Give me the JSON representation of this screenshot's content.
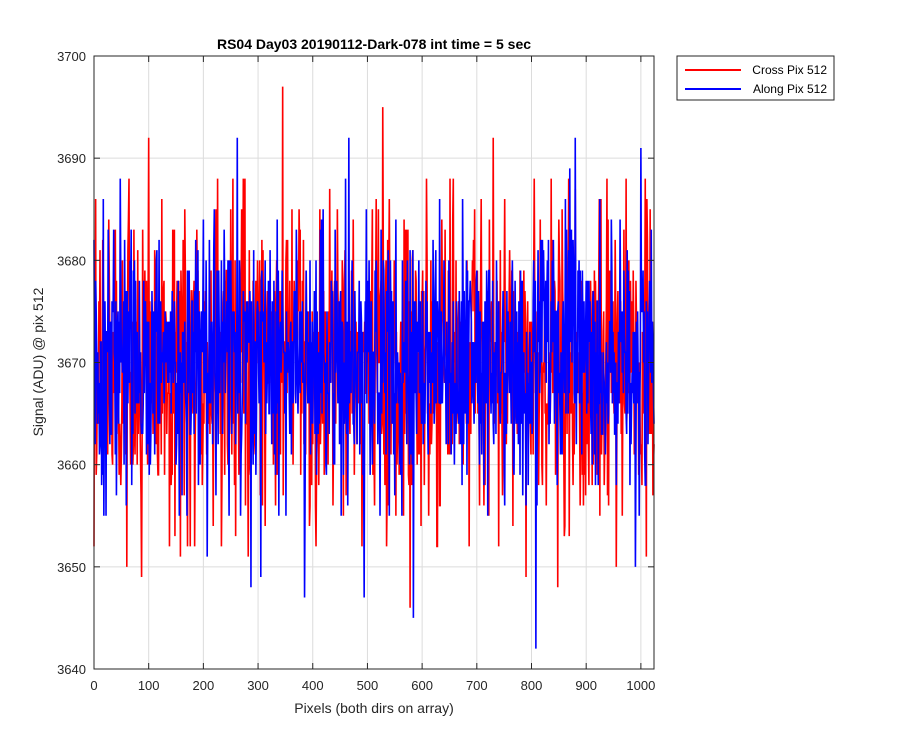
{
  "chart_data": {
    "type": "line",
    "title": "RS04 Day03 20190112-Dark-078 int time = 5 sec",
    "xlabel": "Pixels (both dirs on array)",
    "ylabel": "Signal (ADU) @ pix 512",
    "xlim": [
      0,
      1024
    ],
    "ylim": [
      3640,
      3700
    ],
    "xticks": [
      0,
      100,
      200,
      300,
      400,
      500,
      600,
      700,
      800,
      900,
      1000
    ],
    "yticks": [
      3640,
      3650,
      3660,
      3670,
      3680,
      3690,
      3700
    ],
    "xtick_labels": [
      "0",
      "100",
      "200",
      "300",
      "400",
      "500",
      "600",
      "700",
      "800",
      "900",
      "1000"
    ],
    "ytick_labels": [
      "3640",
      "3650",
      "3660",
      "3670",
      "3680",
      "3690",
      "3700"
    ],
    "grid": true,
    "legend_position": "outside-top-right",
    "series": [
      {
        "name": "Cross Pix 512",
        "color": "#ff0000",
        "n_points": 1024,
        "mean": 3670,
        "typical_range": [
          3652,
          3688
        ],
        "notable_points": [
          {
            "x": 0,
            "y": 3652
          },
          {
            "x": 60,
            "y": 3650
          },
          {
            "x": 87,
            "y": 3649
          },
          {
            "x": 100,
            "y": 3692
          },
          {
            "x": 158,
            "y": 3651
          },
          {
            "x": 282,
            "y": 3651
          },
          {
            "x": 345,
            "y": 3697
          },
          {
            "x": 362,
            "y": 3685
          },
          {
            "x": 528,
            "y": 3695
          },
          {
            "x": 578,
            "y": 3646
          },
          {
            "x": 608,
            "y": 3688
          },
          {
            "x": 730,
            "y": 3692
          },
          {
            "x": 790,
            "y": 3649
          },
          {
            "x": 848,
            "y": 3648
          },
          {
            "x": 955,
            "y": 3650
          },
          {
            "x": 1010,
            "y": 3651
          },
          {
            "x": 1024,
            "y": 3662
          }
        ]
      },
      {
        "name": "Along Pix 512",
        "color": "#0000ff",
        "n_points": 1024,
        "mean": 3670,
        "typical_range": [
          3655,
          3686
        ],
        "notable_points": [
          {
            "x": 0,
            "y": 3682
          },
          {
            "x": 48,
            "y": 3688
          },
          {
            "x": 207,
            "y": 3651
          },
          {
            "x": 262,
            "y": 3692
          },
          {
            "x": 287,
            "y": 3648
          },
          {
            "x": 305,
            "y": 3649
          },
          {
            "x": 385,
            "y": 3647
          },
          {
            "x": 460,
            "y": 3688
          },
          {
            "x": 466,
            "y": 3692
          },
          {
            "x": 494,
            "y": 3647
          },
          {
            "x": 584,
            "y": 3645
          },
          {
            "x": 808,
            "y": 3642
          },
          {
            "x": 870,
            "y": 3689
          },
          {
            "x": 880,
            "y": 3692
          },
          {
            "x": 990,
            "y": 3650
          },
          {
            "x": 1000,
            "y": 3691
          },
          {
            "x": 1024,
            "y": 3664
          }
        ]
      }
    ]
  }
}
